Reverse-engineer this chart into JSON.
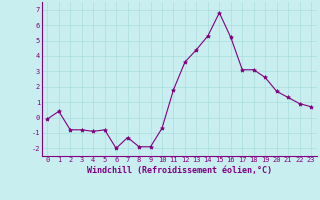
{
  "x": [
    0,
    1,
    2,
    3,
    4,
    5,
    6,
    7,
    8,
    9,
    10,
    11,
    12,
    13,
    14,
    15,
    16,
    17,
    18,
    19,
    20,
    21,
    22,
    23
  ],
  "y": [
    -0.1,
    0.4,
    -0.8,
    -0.8,
    -0.9,
    -0.8,
    -2.0,
    -1.3,
    -1.9,
    -1.9,
    -0.7,
    1.8,
    3.6,
    4.4,
    5.3,
    6.8,
    5.2,
    3.1,
    3.1,
    2.6,
    1.7,
    1.3,
    0.9,
    0.7
  ],
  "line_color": "#800080",
  "marker": "*",
  "marker_size": 3,
  "bg_color": "#c8eef0",
  "grid_color": "#aadddd",
  "xlabel": "Windchill (Refroidissement éolien,°C)",
  "xlabel_color": "#800080",
  "tick_color": "#800080",
  "ylim": [
    -2.5,
    7.5
  ],
  "xlim": [
    -0.5,
    23.5
  ],
  "yticks": [
    -2,
    -1,
    0,
    1,
    2,
    3,
    4,
    5,
    6,
    7
  ],
  "xticks": [
    0,
    1,
    2,
    3,
    4,
    5,
    6,
    7,
    8,
    9,
    10,
    11,
    12,
    13,
    14,
    15,
    16,
    17,
    18,
    19,
    20,
    21,
    22,
    23
  ],
  "label_fontsize": 6,
  "tick_fontsize": 5,
  "linewidth": 0.8
}
